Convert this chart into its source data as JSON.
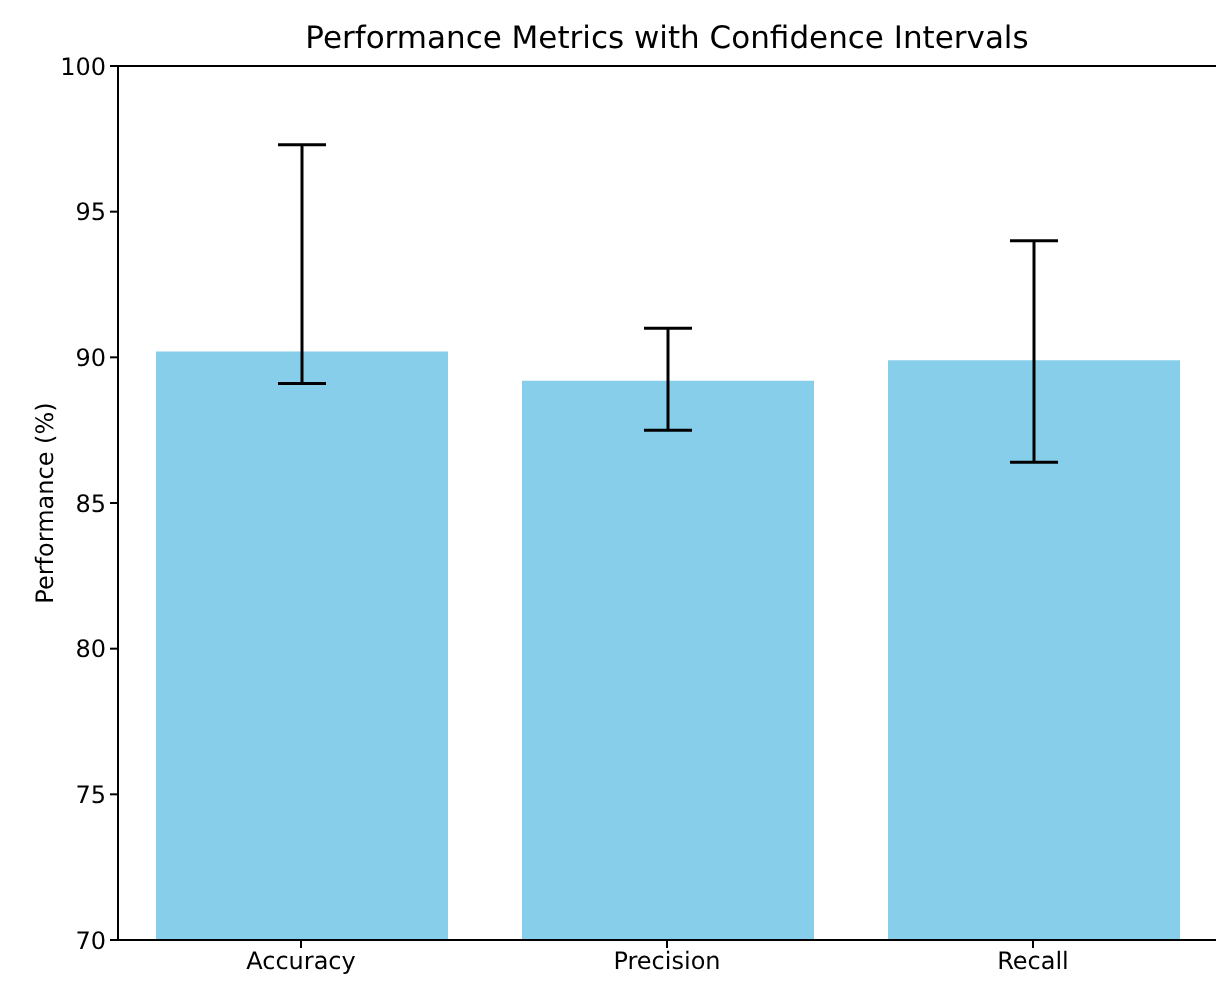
{
  "chart_data": {
    "type": "bar",
    "title": "Performance Metrics with Confidence Intervals",
    "ylabel": "Performance (%)",
    "categories": [
      "Accuracy",
      "Precision",
      "Recall"
    ],
    "values": [
      90.2,
      89.2,
      89.9
    ],
    "color": "#87ceeb",
    "errors": [
      [
        89.1,
        97.3
      ],
      [
        87.5,
        91.0
      ],
      [
        86.4,
        94.0
      ]
    ],
    "ylim": [
      70,
      100
    ],
    "yticks": [
      70,
      75,
      80,
      85,
      90,
      95,
      100
    ],
    "grid": false,
    "legend": false
  }
}
